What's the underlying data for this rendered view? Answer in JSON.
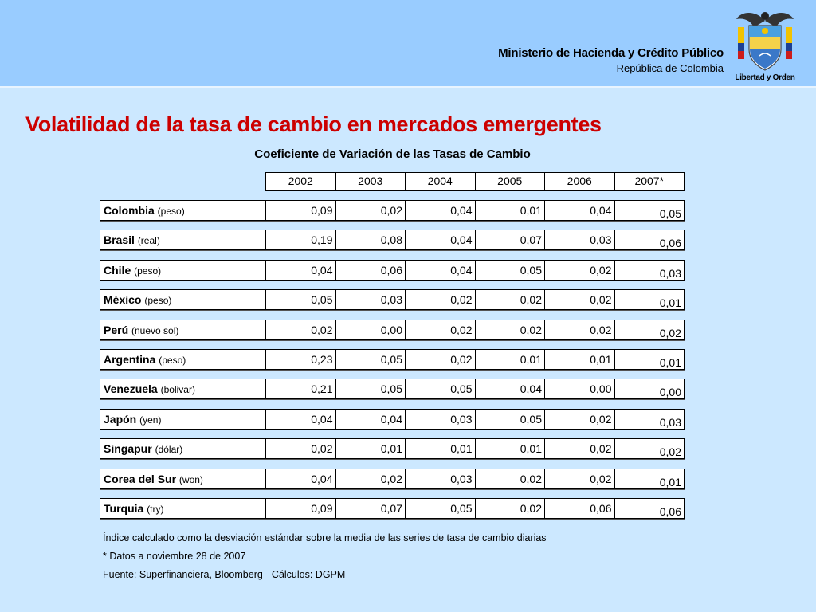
{
  "header": {
    "ministry": "Ministerio de Hacienda y Crédito Público",
    "republic": "República de Colombia",
    "motto": "Libertad y Orden"
  },
  "title": "Volatilidad de la tasa de cambio en mercados emergentes",
  "subtitle": "Coeficiente de Variación de las Tasas de Cambio",
  "years": [
    "2002",
    "2003",
    "2004",
    "2005",
    "2006",
    "2007*"
  ],
  "rows": [
    {
      "country": "Colombia",
      "currency": "(peso)",
      "values": [
        "0,09",
        "0,02",
        "0,04",
        "0,01",
        "0,04",
        "0,05"
      ]
    },
    {
      "country": "Brasil",
      "currency": "(real)",
      "values": [
        "0,19",
        "0,08",
        "0,04",
        "0,07",
        "0,03",
        "0,06"
      ]
    },
    {
      "country": "Chile",
      "currency": "(peso)",
      "values": [
        "0,04",
        "0,06",
        "0,04",
        "0,05",
        "0,02",
        "0,03"
      ]
    },
    {
      "country": "México",
      "currency": "(peso)",
      "values": [
        "0,05",
        "0,03",
        "0,02",
        "0,02",
        "0,02",
        "0,01"
      ]
    },
    {
      "country": "Perú",
      "currency": "(nuevo sol)",
      "values": [
        "0,02",
        "0,00",
        "0,02",
        "0,02",
        "0,02",
        "0,02"
      ]
    },
    {
      "country": "Argentina",
      "currency": "(peso)",
      "values": [
        "0,23",
        "0,05",
        "0,02",
        "0,01",
        "0,01",
        "0,01"
      ]
    },
    {
      "country": "Venezuela",
      "currency": "(bolivar)",
      "values": [
        "0,21",
        "0,05",
        "0,05",
        "0,04",
        "0,00",
        "0,00"
      ]
    },
    {
      "country": "Japón",
      "currency": "(yen)",
      "values": [
        "0,04",
        "0,04",
        "0,03",
        "0,05",
        "0,02",
        "0,03"
      ]
    },
    {
      "country": "Singapur",
      "currency": "(dólar)",
      "values": [
        "0,02",
        "0,01",
        "0,01",
        "0,01",
        "0,02",
        "0,02"
      ]
    },
    {
      "country": "Corea del Sur",
      "currency": "(won)",
      "values": [
        "0,04",
        "0,02",
        "0,03",
        "0,02",
        "0,02",
        "0,01"
      ]
    },
    {
      "country": "Turquia",
      "currency": "(try)",
      "values": [
        "0,09",
        "0,07",
        "0,05",
        "0,02",
        "0,06",
        "0,06"
      ]
    }
  ],
  "notes": [
    "Índice calculado como la desviación estándar sobre la media de las series de tasa de cambio diarias",
    "* Datos a noviembre 28 de 2007",
    "Fuente: Superfinanciera, Bloomberg - Cálculos: DGPM"
  ],
  "colors": {
    "background": "#cce8ff",
    "header": "#99ccff",
    "title": "#cc0000"
  },
  "icons": {
    "logo": "colombia-coat-of-arms-icon"
  }
}
